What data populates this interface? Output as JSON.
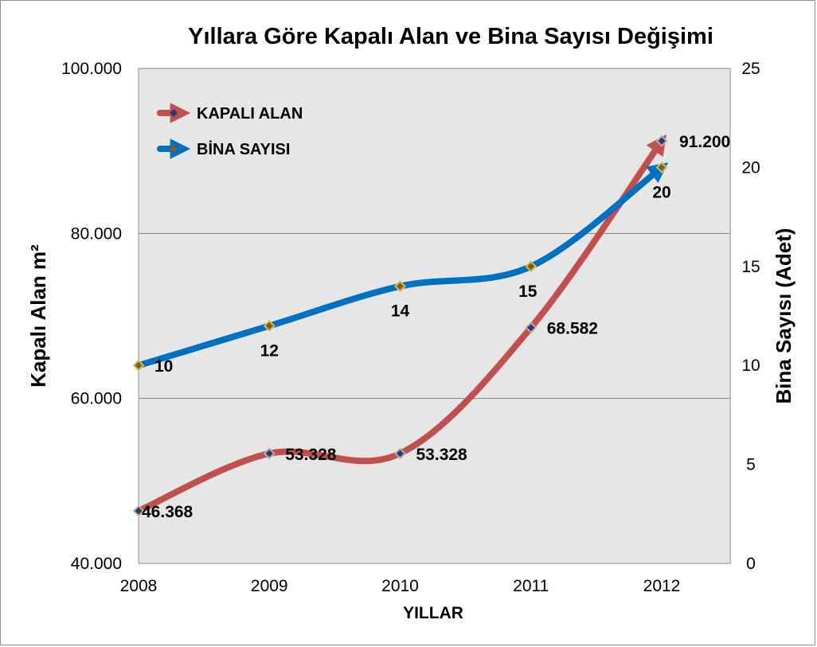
{
  "chart_data": {
    "type": "line",
    "title": "Yıllara Göre Kapalı Alan ve Bina Sayısı Değişimi",
    "xlabel": "YILLAR",
    "ylabel_left": "Kapalı Alan m²",
    "ylabel_right": "Bina Sayısı (Adet)",
    "categories": [
      "2008",
      "2009",
      "2010",
      "2011",
      "2012"
    ],
    "y_left": {
      "min": 40000,
      "max": 100000,
      "ticks": [
        40000,
        60000,
        80000,
        100000
      ],
      "tick_labels": [
        "40.000",
        "60.000",
        "80.000",
        "100.000"
      ]
    },
    "y_right": {
      "min": 0,
      "max": 25,
      "ticks": [
        0,
        5,
        10,
        15,
        20,
        25
      ],
      "tick_labels": [
        "0",
        "5",
        "10",
        "15",
        "20",
        "25"
      ]
    },
    "grid": true,
    "legend_position": "top-left",
    "series": [
      {
        "name": "KAPALI ALAN",
        "axis": "left",
        "color": "#c0504d",
        "marker_color": "#1f3f7a",
        "values": [
          46368,
          53328,
          53328,
          68582,
          91200
        ],
        "labels": [
          "46.368",
          "53.328",
          "53.328",
          "68.582",
          "91.200"
        ]
      },
      {
        "name": "BİNA SAYISI",
        "axis": "right",
        "color": "#0070c0",
        "marker_color": "#8b5a1a",
        "values": [
          10,
          12,
          14,
          15,
          20
        ],
        "labels": [
          "10",
          "12",
          "14",
          "15",
          "20"
        ]
      }
    ],
    "colors": {
      "plot_background": "#e6e6e6",
      "gridline": "#7f7f7f"
    }
  }
}
